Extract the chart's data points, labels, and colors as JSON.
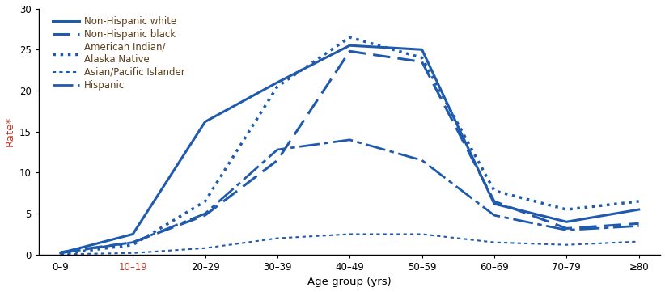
{
  "age_groups": [
    "0–9",
    "10–19",
    "20–29",
    "30–39",
    "40–49",
    "50–59",
    "60–69",
    "70–79",
    "≥80"
  ],
  "x_positions": [
    0,
    1,
    2,
    3,
    4,
    5,
    6,
    7,
    8
  ],
  "series": [
    {
      "label": "Non-Hispanic white",
      "values": [
        0.2,
        2.5,
        16.2,
        21.0,
        25.5,
        25.0,
        6.2,
        4.0,
        5.5
      ],
      "linestyle": "solid",
      "linewidth": 2.2,
      "color": "#1f5aad",
      "dashes": null
    },
    {
      "label": "Non-Hispanic black",
      "values": [
        0.3,
        1.5,
        4.8,
        11.5,
        24.8,
        23.5,
        6.5,
        3.2,
        3.8
      ],
      "linestyle": "dashed",
      "linewidth": 2.2,
      "color": "#1f5aad",
      "dashes": [
        7,
        3
      ]
    },
    {
      "label": "American Indian/\nAlaska Native",
      "values": [
        0.1,
        1.2,
        6.5,
        20.5,
        26.5,
        24.0,
        7.8,
        5.5,
        6.5
      ],
      "linestyle": "dotted",
      "linewidth": 2.5,
      "color": "#1f5aad",
      "dashes": null
    },
    {
      "label": "Asian/Pacific Islander",
      "values": [
        0.05,
        0.2,
        0.8,
        2.0,
        2.5,
        2.5,
        1.5,
        1.2,
        1.6
      ],
      "linestyle": "dashdot",
      "linewidth": 1.5,
      "color": "#1f5aad",
      "dashes": [
        2,
        2
      ]
    },
    {
      "label": "Hispanic",
      "values": [
        0.2,
        1.5,
        5.0,
        12.8,
        14.0,
        11.5,
        4.8,
        3.0,
        3.5
      ],
      "linestyle": "dashed",
      "linewidth": 2.0,
      "color": "#1f5aad",
      "dashes": [
        9,
        2,
        2,
        2
      ]
    }
  ],
  "ylabel": "Rate*",
  "ylabel_color": "#c0392b",
  "xlabel": "Age group (yrs)",
  "xlabel_color": "#000000",
  "ylim": [
    0,
    30
  ],
  "yticks": [
    0,
    5,
    10,
    15,
    20,
    25,
    30
  ],
  "red_xtick_indices": [
    1
  ],
  "background_color": "#ffffff",
  "legend_text_color": "#5a3e1b",
  "legend_fontsize": 8.5,
  "tick_label_fontsize": 8.5,
  "axis_label_fontsize": 9.5
}
